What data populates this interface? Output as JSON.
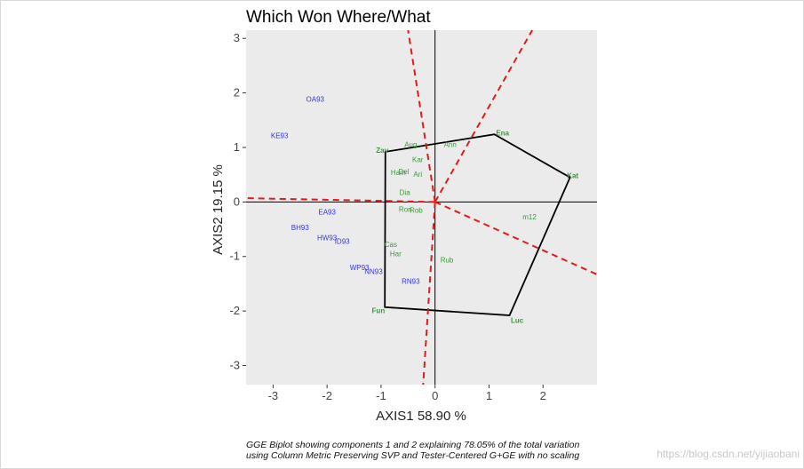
{
  "chart_data": {
    "type": "scatter",
    "title": "Which Won Where/What",
    "xlabel": "AXIS1 58.90 %",
    "ylabel": "AXIS2 19.15 %",
    "xlim": [
      -3.5,
      3.0
    ],
    "ylim": [
      -3.35,
      3.15
    ],
    "xticks": [
      -3,
      -2,
      -1,
      0,
      1,
      2
    ],
    "yticks": [
      -3,
      -2,
      -1,
      0,
      1,
      2,
      3
    ],
    "grid": false,
    "panel_background": "#ebebeb",
    "genotypes": [
      {
        "label": "Ena",
        "x": 1.25,
        "y": 1.27,
        "vertex": true
      },
      {
        "label": "Kat",
        "x": 2.55,
        "y": 0.49,
        "vertex": true
      },
      {
        "label": "Luc",
        "x": 1.52,
        "y": -2.17,
        "vertex": true
      },
      {
        "label": "Fun",
        "x": -1.05,
        "y": -1.99,
        "vertex": true
      },
      {
        "label": "Zav",
        "x": -0.98,
        "y": 0.95,
        "vertex": true
      },
      {
        "label": "Aug",
        "x": -0.45,
        "y": 1.06,
        "vertex": false
      },
      {
        "label": "Ann",
        "x": 0.28,
        "y": 1.06,
        "vertex": false
      },
      {
        "label": "Kar",
        "x": -0.32,
        "y": 0.78,
        "vertex": false
      },
      {
        "label": "Del",
        "x": -0.58,
        "y": 0.56,
        "vertex": false
      },
      {
        "label": "Ham",
        "x": -0.68,
        "y": 0.54,
        "vertex": false
      },
      {
        "label": "Ari",
        "x": -0.32,
        "y": 0.51,
        "vertex": false
      },
      {
        "label": "Dia",
        "x": -0.56,
        "y": 0.18,
        "vertex": false
      },
      {
        "label": "Ron",
        "x": -0.55,
        "y": -0.13,
        "vertex": false
      },
      {
        "label": "Rob",
        "x": -0.35,
        "y": -0.15,
        "vertex": false
      },
      {
        "label": "m12",
        "x": 1.75,
        "y": -0.27,
        "vertex": false
      },
      {
        "label": "Cas",
        "x": -0.82,
        "y": -0.78,
        "vertex": false
      },
      {
        "label": "Har",
        "x": -0.73,
        "y": -0.95,
        "vertex": false
      },
      {
        "label": "Rub",
        "x": 0.22,
        "y": -1.06,
        "vertex": false
      }
    ],
    "environments": [
      {
        "label": "OA93",
        "x": -2.22,
        "y": 1.89
      },
      {
        "label": "KE93",
        "x": -2.88,
        "y": 1.22
      },
      {
        "label": "EA93",
        "x": -2.0,
        "y": -0.18
      },
      {
        "label": "BH93",
        "x": -2.5,
        "y": -0.47
      },
      {
        "label": "HW93",
        "x": -2.0,
        "y": -0.65
      },
      {
        "label": "ID93",
        "x": -1.72,
        "y": -0.72
      },
      {
        "label": "WP93",
        "x": -1.4,
        "y": -1.2
      },
      {
        "label": "NN93",
        "x": -1.14,
        "y": -1.27
      },
      {
        "label": "RN93",
        "x": -0.45,
        "y": -1.45
      }
    ],
    "polygon": [
      [
        1.1,
        1.24
      ],
      [
        2.5,
        0.45
      ],
      [
        1.38,
        -2.08
      ],
      [
        -0.93,
        -1.93
      ],
      [
        -0.92,
        0.92
      ]
    ],
    "rays": [
      {
        "from": [
          0,
          0
        ],
        "to": [
          1.8,
          3.15
        ]
      },
      {
        "from": [
          0,
          0
        ],
        "to": [
          3.0,
          -1.33
        ]
      },
      {
        "from": [
          0,
          0
        ],
        "to": [
          -0.22,
          -3.35
        ]
      },
      {
        "from": [
          0,
          0
        ],
        "to": [
          -3.5,
          0.07
        ]
      },
      {
        "from": [
          0,
          0
        ],
        "to": [
          -0.5,
          3.15
        ]
      }
    ],
    "caption": [
      "GGE Biplot showing components 1 and 2 explaining 78.05% of the total variation",
      "using Column Metric Preserving SVP and Tester-Centered G+GE with no scaling"
    ],
    "colors": {
      "genotype": "#3a9a3a",
      "environment": "#3333ee",
      "ray": "#e31a1c",
      "polygon": "#000000"
    }
  },
  "watermark": "https://blog.csdn.net/yijiaobani"
}
